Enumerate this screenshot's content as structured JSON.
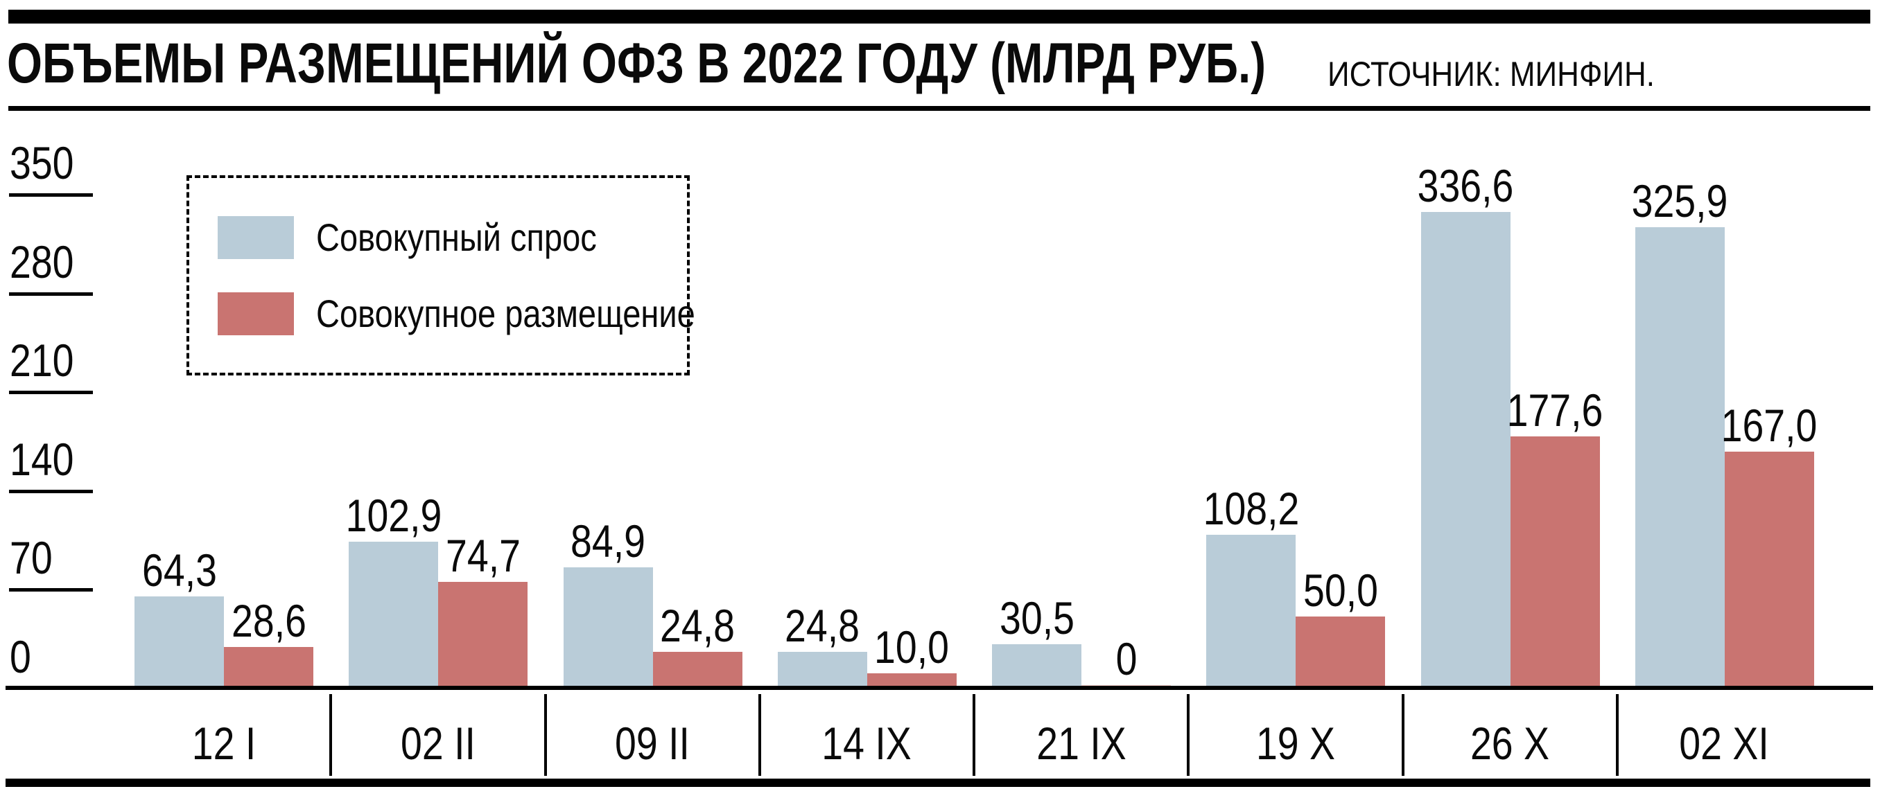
{
  "header": {
    "title": "ОБЪЕМЫ РАЗМЕЩЕНИЙ ОФЗ В 2022 ГОДУ (МЛРД РУБ.)",
    "source": "ИСТОЧНИК: МИНФИН."
  },
  "colors": {
    "demand": "#b9ccd8",
    "placement": "#c97471",
    "placement_zero": "#eecac6",
    "ink": "#000000",
    "background": "#ffffff"
  },
  "chart_data": {
    "type": "bar",
    "title": "ОБЪЕМЫ РАЗМЕЩЕНИЙ ОФЗ В 2022 ГОДУ (МЛРД РУБ.)",
    "source": "ИСТОЧНИК: МИНФИН.",
    "categories": [
      "12 I",
      "02 II",
      "09 II",
      "14 IX",
      "21 IX",
      "19 X",
      "26 X",
      "02 XI"
    ],
    "series": [
      {
        "name": "Совокупный спрос",
        "color": "#b9ccd8",
        "values": [
          64.3,
          102.9,
          84.9,
          24.8,
          30.5,
          108.2,
          336.6,
          325.9
        ],
        "labels": [
          "64,3",
          "102,9",
          "84,9",
          "24,8",
          "30,5",
          "108,2",
          "336,6",
          "325,9"
        ]
      },
      {
        "name": "Совокупное размещение",
        "color": "#c97471",
        "zero_color": "#eecac6",
        "values": [
          28.6,
          74.7,
          24.8,
          10.0,
          0,
          50.0,
          177.6,
          167.0
        ],
        "labels": [
          "28,6",
          "74,7",
          "24,8",
          "10,0",
          "0",
          "50,0",
          "177,6",
          "167,0"
        ]
      }
    ],
    "ylim": [
      0,
      350
    ],
    "yticks": [
      350,
      280,
      210,
      140,
      70,
      0
    ],
    "grid": false,
    "legend_position": "top-left"
  }
}
